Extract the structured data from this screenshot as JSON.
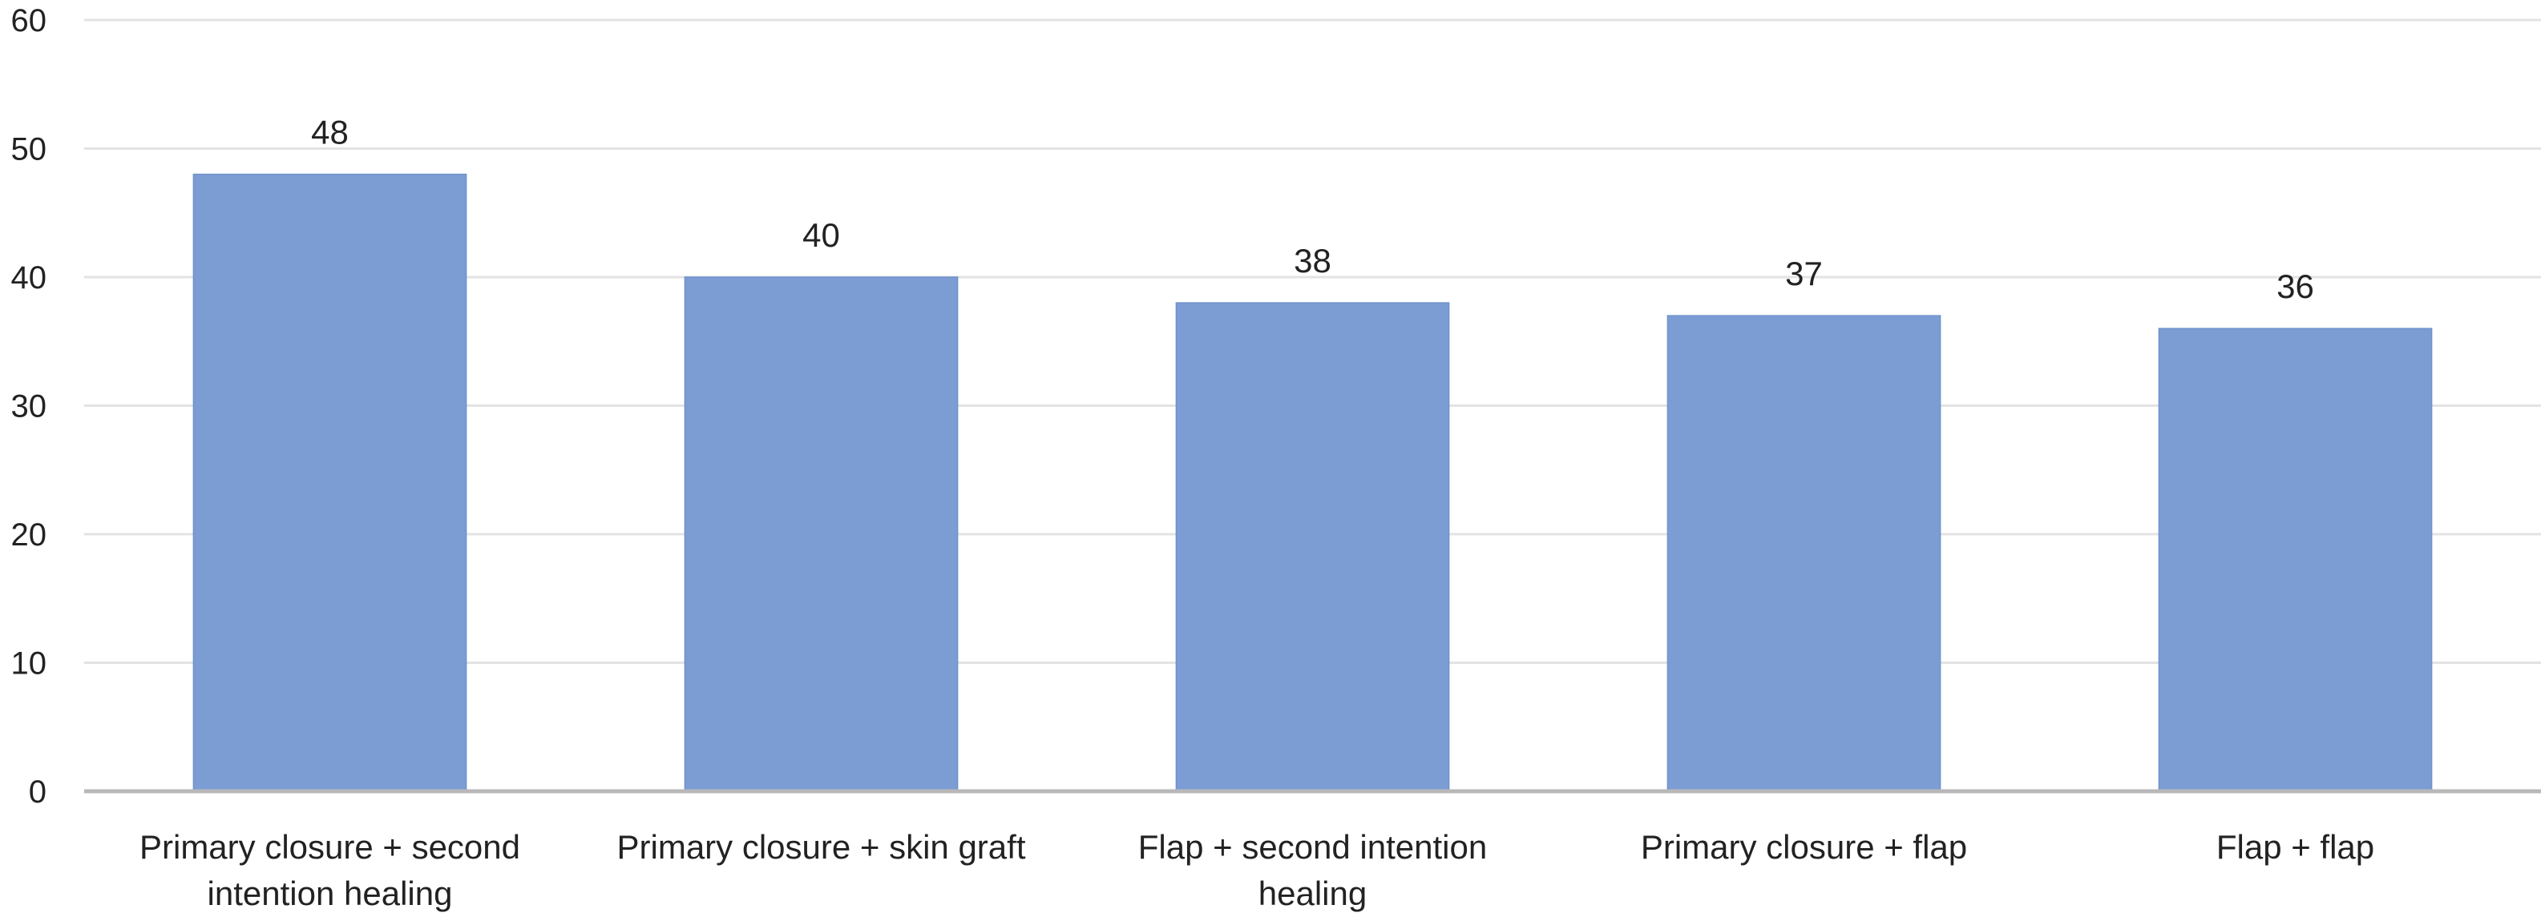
{
  "chart_data": {
    "type": "bar",
    "title": "",
    "xlabel": "",
    "ylabel": "",
    "ylim": [
      0,
      60
    ],
    "yticks": [
      0,
      10,
      20,
      30,
      40,
      50,
      60
    ],
    "grid": true,
    "legend": "none",
    "bar_color": "#7b9dd4",
    "categories": [
      "Primary closure + second intention healing",
      "Primary closure + skin graft",
      "Flap + second intention healing",
      "Primary closure + flap",
      "Flap + flap"
    ],
    "category_lines": [
      [
        "Primary closure + second",
        "intention healing"
      ],
      [
        "Primary closure + skin graft"
      ],
      [
        "Flap + second intention",
        "healing"
      ],
      [
        "Primary closure + flap"
      ],
      [
        "Flap + flap"
      ]
    ],
    "values": [
      48,
      40,
      38,
      37,
      36
    ],
    "data_labels": [
      "48",
      "40",
      "38",
      "37",
      "36"
    ]
  }
}
